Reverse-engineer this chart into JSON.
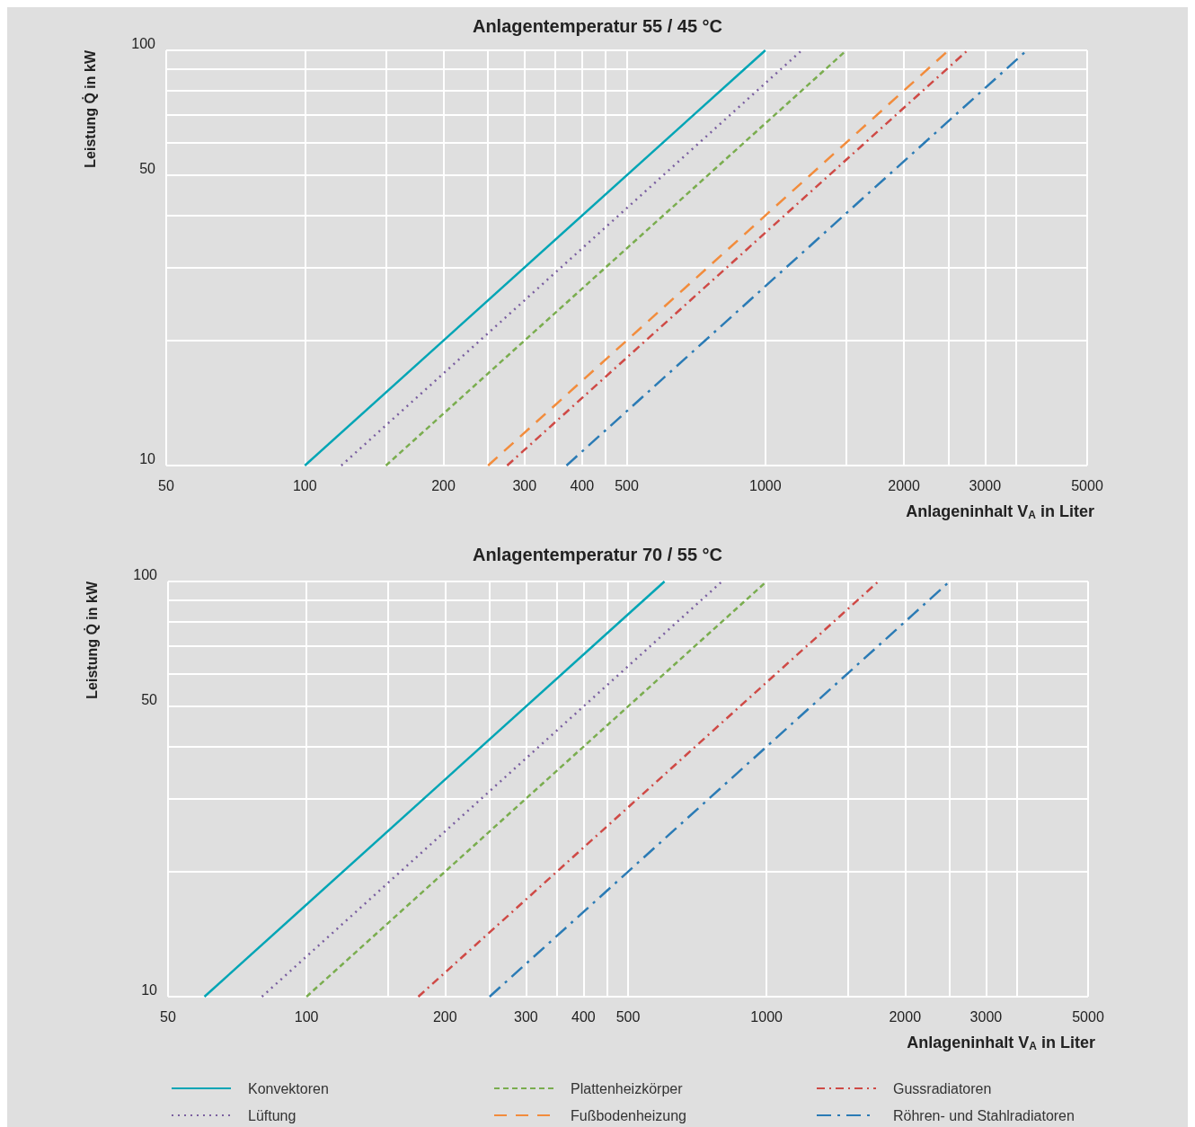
{
  "chart_data": [
    {
      "type": "line",
      "title": "Anlagentemperatur 55 / 45 °C",
      "xlabel": "Anlageninhalt V$_{A}$ in Liter",
      "ylabel": "Leistung Q̇ in kW",
      "log": "xy",
      "grid": true,
      "legend": "bottom",
      "marker": "none",
      "xlim": [
        50,
        5000
      ],
      "ylim": [
        10,
        100
      ],
      "xticks": [
        50,
        100,
        {
          "value": 150,
          "label": null
        },
        200,
        {
          "value": 250,
          "label": null
        },
        300,
        {
          "value": 350,
          "label": null
        },
        400,
        {
          "value": 450,
          "label": null
        },
        500,
        1000,
        {
          "value": 1500,
          "label": null
        },
        2000,
        {
          "value": 2500,
          "label": null
        },
        3000,
        {
          "value": 3500,
          "label": null
        },
        5000
      ],
      "yticks": [
        10,
        {
          "value": 20,
          "label": null
        },
        {
          "value": 30,
          "label": null
        },
        {
          "value": 40,
          "label": null
        },
        50,
        {
          "value": 60,
          "label": null
        },
        {
          "value": 70,
          "label": null
        },
        {
          "value": 80,
          "label": null
        },
        {
          "value": 90,
          "label": null
        },
        100
      ],
      "series": [
        {
          "name": "Konvektoren",
          "color": "#00a5b5",
          "line_style": "solid",
          "x": [
            100,
            1000
          ],
          "values": [
            10,
            100
          ]
        },
        {
          "name": "Lüftung",
          "color": "#7a5fa0",
          "line_style": "dotted",
          "x": [
            120,
            1200
          ],
          "values": [
            10,
            100
          ]
        },
        {
          "name": "Plattenheizkörper",
          "color": "#7aad4f",
          "line_style": "dashed",
          "x": [
            150,
            1500
          ],
          "values": [
            10,
            100
          ]
        },
        {
          "name": "Fußbodenheizung",
          "color": "#f28c3c",
          "line_style": "longdash",
          "x": [
            250,
            2500
          ],
          "values": [
            10,
            100
          ]
        },
        {
          "name": "Gussradiatoren",
          "color": "#cf4a46",
          "line_style": "dashdot",
          "x": [
            275,
            2750
          ],
          "values": [
            10,
            100
          ]
        },
        {
          "name": "Röhren- und Stahlradiatoren",
          "color": "#2b7bb5",
          "line_style": "longdashdot",
          "x": [
            370,
            3700
          ],
          "values": [
            10,
            100
          ]
        }
      ]
    },
    {
      "type": "line",
      "title": "Anlagentemperatur 70 / 55 °C",
      "xlabel": "Anlageninhalt V$_{A}$ in Liter",
      "ylabel": "Leistung Q̇ in kW",
      "log": "xy",
      "grid": true,
      "marker": "none",
      "xlim": [
        50,
        5000
      ],
      "ylim": [
        10,
        100
      ],
      "xticks": [
        50,
        100,
        {
          "value": 150,
          "label": null
        },
        200,
        {
          "value": 250,
          "label": null
        },
        300,
        {
          "value": 350,
          "label": null
        },
        400,
        {
          "value": 450,
          "label": null
        },
        500,
        1000,
        {
          "value": 1500,
          "label": null
        },
        2000,
        {
          "value": 2500,
          "label": null
        },
        3000,
        {
          "value": 3500,
          "label": null
        },
        5000
      ],
      "yticks": [
        10,
        {
          "value": 20,
          "label": null
        },
        {
          "value": 30,
          "label": null
        },
        {
          "value": 40,
          "label": null
        },
        50,
        {
          "value": 60,
          "label": null
        },
        {
          "value": 70,
          "label": null
        },
        {
          "value": 80,
          "label": null
        },
        {
          "value": 90,
          "label": null
        },
        100
      ],
      "series": [
        {
          "color": "#00a5b5",
          "line_style": "solid",
          "x": [
            60,
            600
          ],
          "values": [
            10,
            100
          ]
        },
        {
          "color": "#7a5fa0",
          "line_style": "dotted",
          "x": [
            80,
            800
          ],
          "values": [
            10,
            100
          ]
        },
        {
          "color": "#7aad4f",
          "line_style": "dashed",
          "x": [
            100,
            1000
          ],
          "values": [
            10,
            100
          ]
        },
        {
          "color": "#cf4a46",
          "line_style": "dashdot",
          "x": [
            175,
            1750
          ],
          "values": [
            10,
            100
          ]
        },
        {
          "color": "#2b7bb5",
          "line_style": "longdashdot",
          "x": [
            250,
            2500
          ],
          "values": [
            10,
            100
          ]
        }
      ]
    }
  ]
}
